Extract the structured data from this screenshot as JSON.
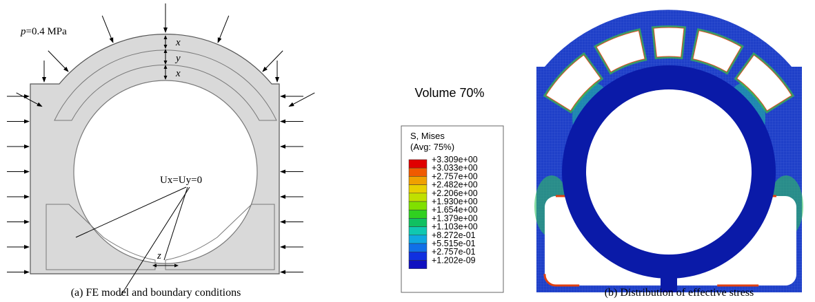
{
  "panel_a": {
    "pressure_label": {
      "symbol": "p",
      "text": "=0.4 MPa"
    },
    "dims": [
      "x",
      "y",
      "x",
      "z"
    ],
    "support_label": "Ux=Uy=0",
    "caption": "(a) FE model and boundary conditions"
  },
  "panel_b": {
    "title": "Volume 70%",
    "legend": {
      "title": "S, Mises",
      "subtitle": "(Avg: 75%)",
      "levels": [
        "+3.309e+00",
        "+3.033e+00",
        "+2.757e+00",
        "+2.482e+00",
        "+2.206e+00",
        "+1.930e+00",
        "+1.654e+00",
        "+1.379e+00",
        "+1.103e+00",
        "+8.272e-01",
        "+5.515e-01",
        "+2.757e-01",
        "+1.202e-09"
      ],
      "colors": [
        "#e00000",
        "#f05a00",
        "#f0a000",
        "#e8d000",
        "#c0e000",
        "#80e000",
        "#30d020",
        "#10c060",
        "#10c8b0",
        "#10a8e0",
        "#1070e8",
        "#1030e0",
        "#1010c0"
      ]
    },
    "caption": "(b) Distribution of effective stress"
  }
}
